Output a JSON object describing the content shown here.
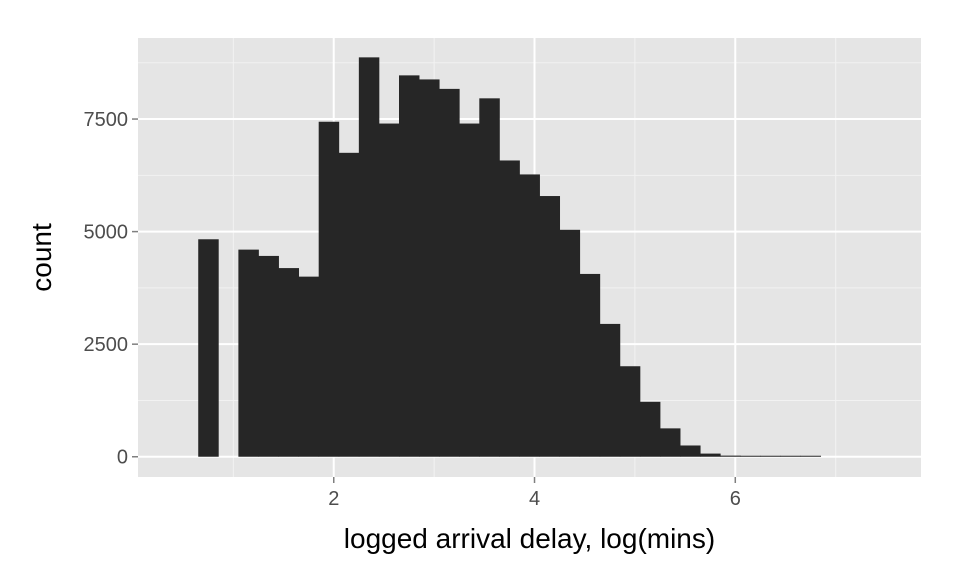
{
  "chart_data": {
    "type": "bar",
    "title": "",
    "xlabel": "logged arrival delay, log(mins)",
    "ylabel": "count",
    "xlim": [
      0.05,
      7.85
    ],
    "ylim": [
      -450,
      9300
    ],
    "x_ticks": [
      2,
      4,
      6
    ],
    "x_tick_labels": [
      "2",
      "4",
      "6"
    ],
    "y_ticks": [
      0,
      2500,
      5000,
      7500
    ],
    "y_tick_labels": [
      "0",
      "2500",
      "5000",
      "7500"
    ],
    "x_minor_ticks": [
      1,
      3,
      5,
      7
    ],
    "y_minor_ticks": [
      1250,
      3750,
      6250,
      8750
    ],
    "grid": true,
    "legend": "none",
    "bin_width": 0.2,
    "bins": [
      {
        "x0": 0.65,
        "x1": 0.85,
        "count": 4830
      },
      {
        "x0": 1.05,
        "x1": 1.25,
        "count": 4600
      },
      {
        "x0": 1.25,
        "x1": 1.45,
        "count": 4460
      },
      {
        "x0": 1.45,
        "x1": 1.65,
        "count": 4190
      },
      {
        "x0": 1.65,
        "x1": 1.85,
        "count": 4000
      },
      {
        "x0": 1.85,
        "x1": 2.05,
        "count": 7440
      },
      {
        "x0": 2.05,
        "x1": 2.25,
        "count": 6750
      },
      {
        "x0": 2.25,
        "x1": 2.45,
        "count": 8870
      },
      {
        "x0": 2.45,
        "x1": 2.65,
        "count": 7400
      },
      {
        "x0": 2.65,
        "x1": 2.85,
        "count": 8470
      },
      {
        "x0": 2.85,
        "x1": 3.05,
        "count": 8380
      },
      {
        "x0": 3.05,
        "x1": 3.25,
        "count": 8170
      },
      {
        "x0": 3.25,
        "x1": 3.45,
        "count": 7400
      },
      {
        "x0": 3.45,
        "x1": 3.65,
        "count": 7960
      },
      {
        "x0": 3.65,
        "x1": 3.85,
        "count": 6580
      },
      {
        "x0": 3.85,
        "x1": 4.05,
        "count": 6270
      },
      {
        "x0": 4.05,
        "x1": 4.25,
        "count": 5790
      },
      {
        "x0": 4.25,
        "x1": 4.45,
        "count": 5040
      },
      {
        "x0": 4.45,
        "x1": 4.65,
        "count": 4060
      },
      {
        "x0": 4.65,
        "x1": 4.85,
        "count": 2950
      },
      {
        "x0": 4.85,
        "x1": 5.05,
        "count": 2010
      },
      {
        "x0": 5.05,
        "x1": 5.25,
        "count": 1220
      },
      {
        "x0": 5.25,
        "x1": 5.45,
        "count": 630
      },
      {
        "x0": 5.45,
        "x1": 5.65,
        "count": 250
      },
      {
        "x0": 5.65,
        "x1": 5.85,
        "count": 70
      },
      {
        "x0": 5.85,
        "x1": 6.05,
        "count": 25
      },
      {
        "x0": 6.05,
        "x1": 6.25,
        "count": 12
      },
      {
        "x0": 6.25,
        "x1": 6.45,
        "count": 8
      },
      {
        "x0": 6.45,
        "x1": 6.65,
        "count": 5
      },
      {
        "x0": 6.65,
        "x1": 6.85,
        "count": 3
      }
    ],
    "colors": {
      "panel_background": "#e5e5e5",
      "major_grid": "#ffffff",
      "minor_grid": "#f2f2f2",
      "bar_fill": "#262626",
      "tick_label": "#4d4d4d",
      "axis_title": "#000000",
      "tick_mark": "#7f7f7f"
    }
  }
}
